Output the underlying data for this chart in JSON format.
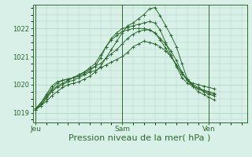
{
  "background_color": "#d8f0e8",
  "grid_color": "#b0d8c8",
  "line_color": "#2d6a2d",
  "xlabel": "Pression niveau de la mer( hPa )",
  "xlabel_fontsize": 8,
  "yticks": [
    1019,
    1020,
    1021,
    1022
  ],
  "xtick_labels": [
    "Jeu",
    "Sam",
    "Ven"
  ],
  "xtick_positions": [
    0,
    16,
    32
  ],
  "xlim": [
    -0.5,
    39
  ],
  "ylim": [
    1018.65,
    1022.85
  ],
  "series": [
    [
      1019.1,
      1019.25,
      1019.4,
      1019.6,
      1019.75,
      1019.9,
      1020.0,
      1020.05,
      1020.1,
      1020.2,
      1020.3,
      1020.45,
      1020.65,
      1020.95,
      1021.25,
      1021.55,
      1021.85,
      1022.1,
      1022.2,
      1022.35,
      1022.5,
      1022.7,
      1022.75,
      1022.45,
      1022.1,
      1021.75,
      1021.35,
      1020.75,
      1020.2,
      1019.95,
      1019.75,
      1019.65,
      1019.55,
      1019.45
    ],
    [
      1019.15,
      1019.35,
      1019.6,
      1019.85,
      1020.05,
      1020.15,
      1020.2,
      1020.25,
      1020.3,
      1020.4,
      1020.5,
      1020.65,
      1020.95,
      1021.35,
      1021.65,
      1021.85,
      1022.0,
      1022.05,
      1022.1,
      1022.15,
      1022.2,
      1022.25,
      1022.2,
      1021.95,
      1021.5,
      1021.05,
      1020.65,
      1020.25,
      1020.05,
      1019.95,
      1019.85,
      1019.8,
      1019.75,
      1019.7
    ],
    [
      1019.1,
      1019.35,
      1019.65,
      1019.95,
      1020.1,
      1020.15,
      1020.2,
      1020.25,
      1020.35,
      1020.45,
      1020.6,
      1020.75,
      1021.05,
      1021.35,
      1021.6,
      1021.75,
      1021.9,
      1021.95,
      1022.0,
      1022.0,
      1022.0,
      1021.95,
      1021.85,
      1021.6,
      1021.3,
      1021.0,
      1020.7,
      1020.4,
      1020.15,
      1020.05,
      1020.0,
      1019.95,
      1019.9,
      1019.85
    ],
    [
      1019.1,
      1019.3,
      1019.55,
      1019.8,
      1019.95,
      1020.05,
      1020.15,
      1020.25,
      1020.35,
      1020.45,
      1020.55,
      1020.65,
      1020.75,
      1020.95,
      1021.1,
      1021.25,
      1021.45,
      1021.65,
      1021.8,
      1021.9,
      1021.95,
      1021.95,
      1021.85,
      1021.65,
      1021.45,
      1021.2,
      1020.85,
      1020.45,
      1020.15,
      1019.95,
      1019.85,
      1019.75,
      1019.65,
      1019.6
    ],
    [
      1019.1,
      1019.25,
      1019.5,
      1019.75,
      1019.9,
      1020.0,
      1020.1,
      1020.15,
      1020.25,
      1020.35,
      1020.45,
      1020.5,
      1020.6,
      1020.7,
      1020.8,
      1020.9,
      1021.0,
      1021.15,
      1021.35,
      1021.45,
      1021.55,
      1021.5,
      1021.45,
      1021.35,
      1021.2,
      1021.0,
      1020.7,
      1020.4,
      1020.2,
      1020.0,
      1019.9,
      1019.8,
      1019.7,
      1019.65
    ]
  ]
}
